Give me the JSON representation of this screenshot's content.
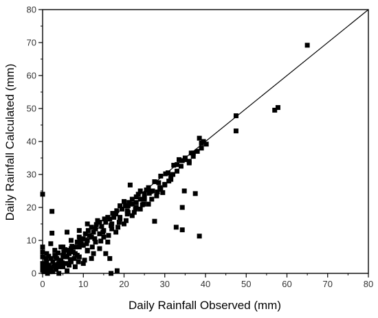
{
  "chart_data": {
    "type": "scatter",
    "title": "",
    "xlabel": "Daily Rainfall Observed (mm)",
    "ylabel": "Daily Rainfall Calculated (mm)",
    "xlim": [
      0,
      80
    ],
    "ylim": [
      0,
      80
    ],
    "xticks": [
      0,
      10,
      20,
      30,
      40,
      50,
      60,
      70,
      80
    ],
    "yticks": [
      0,
      10,
      20,
      30,
      40,
      50,
      60,
      70,
      80
    ],
    "xticklabels": [
      "0",
      "10",
      "20",
      "30",
      "40",
      "50",
      "60",
      "70",
      "80"
    ],
    "yticklabels": [
      "0",
      "10",
      "20",
      "30",
      "40",
      "50",
      "60",
      "70",
      "80"
    ],
    "grid": false,
    "marker": "square",
    "marker_color": "#000000",
    "reference_line": {
      "x": [
        0,
        80
      ],
      "y": [
        0,
        80
      ]
    },
    "series": [
      {
        "points": [
          [
            0,
            24
          ],
          [
            2.3,
            18.8
          ],
          [
            2.3,
            12.2
          ],
          [
            16.8,
            0
          ],
          [
            18.3,
            0.8
          ],
          [
            6,
            12.5
          ],
          [
            9,
            11
          ],
          [
            11,
            7
          ],
          [
            12.5,
            6
          ],
          [
            15.5,
            6
          ],
          [
            16.5,
            4.5
          ],
          [
            27.5,
            15.8
          ],
          [
            32.8,
            14
          ],
          [
            34.3,
            13.2
          ],
          [
            38.5,
            11.3
          ],
          [
            34.3,
            20
          ],
          [
            34.8,
            25
          ],
          [
            37.5,
            24.2
          ],
          [
            31.5,
            28.5
          ],
          [
            32.2,
            32.8
          ],
          [
            47.5,
            47.8
          ],
          [
            47.5,
            43.2
          ],
          [
            57,
            49.5
          ],
          [
            57.8,
            50.3
          ],
          [
            65,
            69.2
          ],
          [
            38.5,
            41
          ],
          [
            39,
            39.5
          ],
          [
            40.2,
            39.2
          ],
          [
            36.5,
            36.5
          ],
          [
            35,
            35
          ],
          [
            34.3,
            34.2
          ],
          [
            33,
            33
          ],
          [
            30.8,
            30.5
          ],
          [
            31.5,
            29.5
          ],
          [
            30,
            26.8
          ],
          [
            28.5,
            27.5
          ],
          [
            29.5,
            24.5
          ],
          [
            26.5,
            24.8
          ],
          [
            25,
            24
          ],
          [
            24,
            22.5
          ],
          [
            23,
            23.2
          ],
          [
            22,
            21
          ],
          [
            21.5,
            26.8
          ],
          [
            20.3,
            20.5
          ],
          [
            20.8,
            18
          ],
          [
            19.5,
            19.5
          ],
          [
            18.2,
            19
          ],
          [
            17.5,
            17
          ],
          [
            16.5,
            16.5
          ],
          [
            15.5,
            15.5
          ],
          [
            14.5,
            14.2
          ],
          [
            14,
            12
          ],
          [
            13.5,
            16
          ],
          [
            12.5,
            12.5
          ],
          [
            12,
            14
          ],
          [
            11.5,
            11.5
          ],
          [
            11,
            10
          ],
          [
            10.5,
            12
          ],
          [
            10,
            10.5
          ],
          [
            9.5,
            9
          ],
          [
            9,
            8
          ],
          [
            8.5,
            9.5
          ],
          [
            8,
            8
          ],
          [
            7.5,
            6.5
          ],
          [
            7,
            7.5
          ],
          [
            6.5,
            6
          ],
          [
            6,
            7
          ],
          [
            5.5,
            5
          ],
          [
            5,
            5.5
          ],
          [
            4.5,
            4
          ],
          [
            4,
            3
          ],
          [
            3.5,
            4.5
          ],
          [
            3,
            2.5
          ],
          [
            2.5,
            3.5
          ],
          [
            2,
            1.5
          ],
          [
            1.5,
            2.5
          ],
          [
            1,
            1
          ],
          [
            0.5,
            1.5
          ],
          [
            0,
            8
          ],
          [
            0,
            5
          ],
          [
            0,
            3
          ],
          [
            0,
            1
          ],
          [
            1.2,
            0
          ],
          [
            2.5,
            0.5
          ],
          [
            4,
            0
          ],
          [
            6,
            0.8
          ],
          [
            8,
            2
          ],
          [
            10,
            3
          ],
          [
            12,
            4.5
          ],
          [
            14,
            7.5
          ],
          [
            16,
            9.5
          ],
          [
            18,
            12.5
          ],
          [
            20,
            15
          ],
          [
            22,
            17.5
          ],
          [
            24,
            19.5
          ],
          [
            26,
            21
          ],
          [
            28,
            23.5
          ],
          [
            30,
            27
          ],
          [
            32,
            30
          ],
          [
            34,
            32.5
          ],
          [
            36,
            34
          ],
          [
            38,
            37
          ],
          [
            1,
            6
          ],
          [
            2,
            9
          ],
          [
            3,
            5.5
          ],
          [
            4.5,
            8
          ],
          [
            5,
            2
          ],
          [
            7,
            3.5
          ],
          [
            9,
            5
          ],
          [
            11,
            6.8
          ],
          [
            13,
            9.5
          ],
          [
            15,
            11
          ],
          [
            17,
            13.5
          ],
          [
            19,
            16.5
          ],
          [
            21,
            18.5
          ],
          [
            23,
            20
          ],
          [
            25,
            22.5
          ],
          [
            27,
            25
          ],
          [
            29,
            25.5
          ],
          [
            31,
            28
          ],
          [
            33,
            31
          ],
          [
            35,
            34.5
          ],
          [
            37,
            35.5
          ],
          [
            39,
            38
          ],
          [
            13,
            13.5
          ],
          [
            15,
            13
          ],
          [
            17,
            15
          ],
          [
            19,
            17
          ],
          [
            21,
            20.5
          ],
          [
            23,
            21.5
          ],
          [
            25,
            23
          ],
          [
            26,
            26
          ],
          [
            24,
            25
          ],
          [
            22,
            22.5
          ],
          [
            20,
            21.8
          ],
          [
            18,
            18
          ],
          [
            16,
            17
          ],
          [
            14,
            15.5
          ],
          [
            12,
            11
          ],
          [
            10,
            8.5
          ],
          [
            8,
            6
          ],
          [
            6,
            5
          ],
          [
            4,
            2
          ],
          [
            2,
            4.5
          ],
          [
            11,
            15
          ],
          [
            9,
            13
          ],
          [
            7,
            10
          ],
          [
            5,
            8
          ],
          [
            3,
            7
          ],
          [
            1,
            3.5
          ],
          [
            0,
            2
          ],
          [
            0,
            6.5
          ],
          [
            0.8,
            4.5
          ],
          [
            1.8,
            0.5
          ],
          [
            3.3,
            1.2
          ],
          [
            5.8,
            3
          ],
          [
            7.8,
            4.5
          ],
          [
            8.8,
            3.5
          ],
          [
            10.8,
            9
          ],
          [
            12.8,
            10.5
          ],
          [
            14.8,
            12.5
          ],
          [
            16.8,
            14.5
          ],
          [
            18.8,
            15.5
          ],
          [
            20.8,
            19
          ],
          [
            22.8,
            19.5
          ],
          [
            24.8,
            21
          ],
          [
            26.8,
            22.5
          ],
          [
            28.8,
            26
          ],
          [
            33.5,
            34.5
          ],
          [
            36,
            33.5
          ],
          [
            37,
            36.5
          ],
          [
            39.5,
            40
          ],
          [
            30.2,
            30.2
          ],
          [
            29,
            29.5
          ],
          [
            27.5,
            27.8
          ],
          [
            25.5,
            25.3
          ],
          [
            23.5,
            24
          ],
          [
            21.2,
            21.5
          ],
          [
            19,
            20.5
          ],
          [
            17.2,
            18.2
          ],
          [
            15.2,
            16.5
          ],
          [
            13.2,
            14.8
          ],
          [
            11.2,
            13
          ],
          [
            9.2,
            10
          ],
          [
            7.2,
            8.2
          ],
          [
            5.2,
            6.5
          ],
          [
            3.2,
            5
          ],
          [
            1.3,
            2
          ],
          [
            6.5,
            2.5
          ],
          [
            8.5,
            5.5
          ],
          [
            10.3,
            4
          ],
          [
            12.2,
            8
          ],
          [
            14.3,
            9.8
          ],
          [
            16.2,
            11.5
          ],
          [
            18.5,
            14
          ],
          [
            20.5,
            16
          ],
          [
            22.5,
            18.5
          ],
          [
            24.5,
            20.8
          ],
          [
            26.2,
            24.3
          ],
          [
            28.2,
            24.7
          ],
          [
            0.3,
            0.5
          ],
          [
            0.6,
            2.8
          ],
          [
            1.5,
            5.2
          ],
          [
            2.7,
            2
          ],
          [
            3.8,
            6.2
          ],
          [
            4.8,
            3.2
          ],
          [
            5.5,
            7.2
          ],
          [
            6.8,
            4.2
          ]
        ]
      }
    ]
  }
}
